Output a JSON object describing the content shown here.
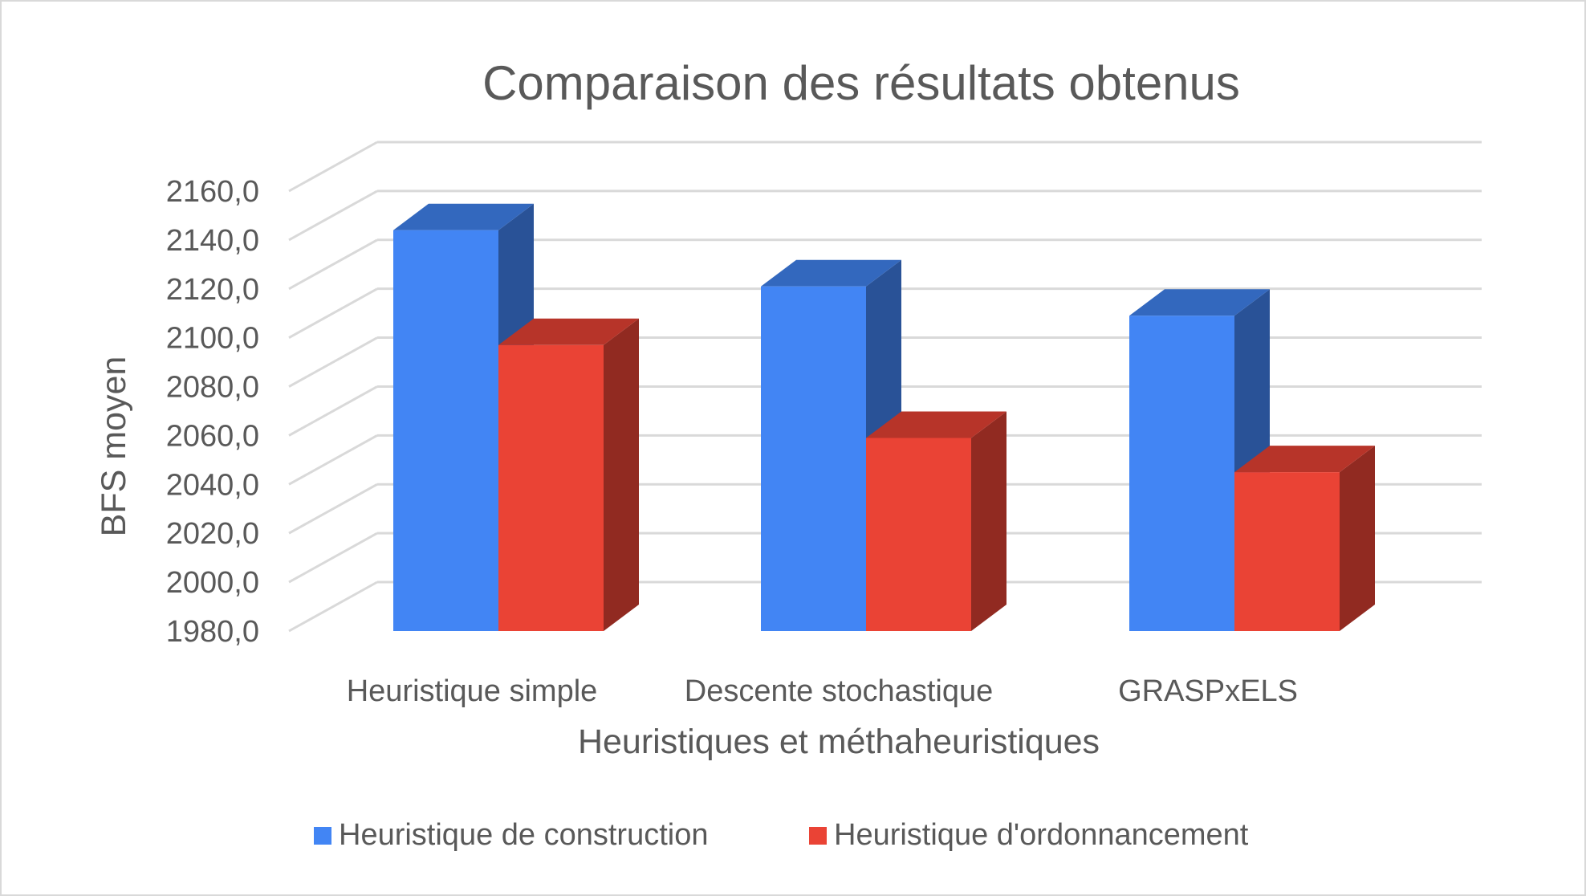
{
  "chart_data": {
    "type": "bar",
    "title": "Comparaison des résultats obtenus",
    "xlabel": "Heuristiques et méthaheuristiques",
    "ylabel": "BFS moyen",
    "categories": [
      "Heuristique simple",
      "Descente stochastique",
      "GRASPxELS"
    ],
    "series": [
      {
        "name": "Heuristique de construction",
        "values": [
          2144.0,
          2121.0,
          2109.0
        ],
        "color": "#4285f4"
      },
      {
        "name": "Heuristique d'ordonnancement",
        "values": [
          2097.0,
          2059.0,
          2045.0
        ],
        "color": "#ea4335"
      }
    ],
    "yticks": [
      "1980,0",
      "2000,0",
      "2020,0",
      "2040,0",
      "2060,0",
      "2080,0",
      "2100,0",
      "2120,0",
      "2140,0",
      "2160,0"
    ],
    "ylim": [
      1980,
      2160
    ],
    "grid": true,
    "legend_position": "bottom",
    "style": "3d-clustered-column"
  }
}
